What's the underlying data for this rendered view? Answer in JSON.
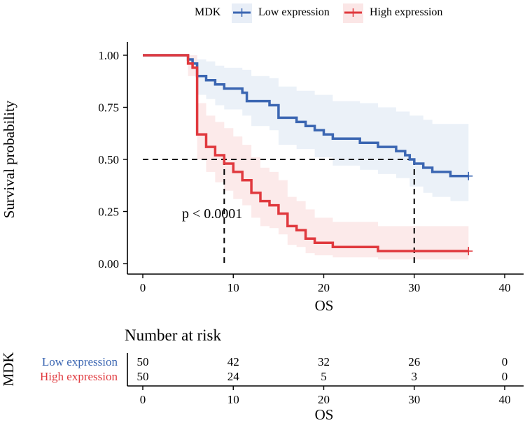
{
  "chart_data": [
    {
      "type": "line",
      "subtype": "kaplan-meier",
      "title": "",
      "xlabel": "OS",
      "ylabel": "Survival probability",
      "xlim": [
        0,
        40
      ],
      "ylim": [
        0,
        1
      ],
      "xticks": [
        "0",
        "10",
        "20",
        "30",
        "40"
      ],
      "yticks": [
        "0.00",
        "0.25",
        "0.50",
        "0.75",
        "1.00"
      ],
      "legend": {
        "title": "MDK",
        "position": "top",
        "entries": [
          "Low expression",
          "High expression"
        ]
      },
      "annotation": "p < 0.0001",
      "median_line": {
        "y": 0.5,
        "medians": [
          9,
          30
        ]
      },
      "series": [
        {
          "name": "Low expression",
          "color": "#3B66B2",
          "fill": "#E8EEF7",
          "steps": [
            [
              0,
              1.0
            ],
            [
              5,
              0.98
            ],
            [
              5.5,
              0.96
            ],
            [
              6,
              0.9
            ],
            [
              7,
              0.88
            ],
            [
              8,
              0.86
            ],
            [
              9,
              0.84
            ],
            [
              11,
              0.82
            ],
            [
              11.5,
              0.78
            ],
            [
              14,
              0.76
            ],
            [
              15,
              0.7
            ],
            [
              17,
              0.68
            ],
            [
              18,
              0.66
            ],
            [
              19,
              0.64
            ],
            [
              20,
              0.62
            ],
            [
              21,
              0.6
            ],
            [
              24,
              0.58
            ],
            [
              26,
              0.56
            ],
            [
              28,
              0.54
            ],
            [
              29,
              0.52
            ],
            [
              29.5,
              0.5
            ],
            [
              30,
              0.48
            ],
            [
              31,
              0.46
            ],
            [
              32,
              0.44
            ],
            [
              34,
              0.42
            ],
            [
              36,
              0.42
            ]
          ],
          "ci_upper": [
            [
              0,
              1.0
            ],
            [
              5,
              1.0
            ],
            [
              6,
              0.98
            ],
            [
              7,
              0.97
            ],
            [
              8,
              0.95
            ],
            [
              9,
              0.94
            ],
            [
              11,
              0.93
            ],
            [
              12,
              0.9
            ],
            [
              14,
              0.89
            ],
            [
              15,
              0.85
            ],
            [
              17,
              0.83
            ],
            [
              19,
              0.81
            ],
            [
              21,
              0.78
            ],
            [
              24,
              0.77
            ],
            [
              26,
              0.75
            ],
            [
              28,
              0.73
            ],
            [
              29.5,
              0.71
            ],
            [
              31,
              0.69
            ],
            [
              32,
              0.67
            ],
            [
              36,
              0.67
            ]
          ],
          "ci_lower": [
            [
              0,
              1.0
            ],
            [
              5,
              0.93
            ],
            [
              6,
              0.81
            ],
            [
              7,
              0.79
            ],
            [
              8,
              0.76
            ],
            [
              9,
              0.74
            ],
            [
              11,
              0.71
            ],
            [
              12,
              0.66
            ],
            [
              14,
              0.64
            ],
            [
              15,
              0.57
            ],
            [
              17,
              0.55
            ],
            [
              19,
              0.51
            ],
            [
              21,
              0.47
            ],
            [
              24,
              0.45
            ],
            [
              26,
              0.43
            ],
            [
              28,
              0.41
            ],
            [
              29.5,
              0.37
            ],
            [
              31,
              0.34
            ],
            [
              32,
              0.32
            ],
            [
              34,
              0.3
            ],
            [
              36,
              0.3
            ]
          ],
          "censor": [
            36,
            0.42
          ]
        },
        {
          "name": "High expression",
          "color": "#E0393E",
          "fill": "#FBE6E6",
          "steps": [
            [
              0,
              1.0
            ],
            [
              5,
              0.96
            ],
            [
              5.5,
              0.94
            ],
            [
              6,
              0.62
            ],
            [
              7,
              0.56
            ],
            [
              8,
              0.52
            ],
            [
              9,
              0.48
            ],
            [
              10,
              0.44
            ],
            [
              11,
              0.4
            ],
            [
              12,
              0.34
            ],
            [
              13,
              0.3
            ],
            [
              14,
              0.28
            ],
            [
              15,
              0.24
            ],
            [
              16,
              0.18
            ],
            [
              17,
              0.16
            ],
            [
              18,
              0.12
            ],
            [
              19,
              0.1
            ],
            [
              21,
              0.08
            ],
            [
              26,
              0.06
            ],
            [
              36,
              0.06
            ]
          ],
          "ci_upper": [
            [
              0,
              1.0
            ],
            [
              5,
              1.0
            ],
            [
              6,
              0.77
            ],
            [
              7,
              0.71
            ],
            [
              8,
              0.68
            ],
            [
              9,
              0.65
            ],
            [
              10,
              0.61
            ],
            [
              11,
              0.57
            ],
            [
              12,
              0.51
            ],
            [
              13,
              0.46
            ],
            [
              14,
              0.44
            ],
            [
              15,
              0.4
            ],
            [
              16,
              0.32
            ],
            [
              17,
              0.3
            ],
            [
              18,
              0.26
            ],
            [
              19,
              0.22
            ],
            [
              21,
              0.2
            ],
            [
              26,
              0.18
            ],
            [
              36,
              0.18
            ]
          ],
          "ci_lower": [
            [
              0,
              1.0
            ],
            [
              5,
              0.9
            ],
            [
              6,
              0.5
            ],
            [
              7,
              0.44
            ],
            [
              8,
              0.39
            ],
            [
              9,
              0.35
            ],
            [
              10,
              0.31
            ],
            [
              11,
              0.28
            ],
            [
              12,
              0.22
            ],
            [
              13,
              0.18
            ],
            [
              14,
              0.17
            ],
            [
              15,
              0.14
            ],
            [
              16,
              0.09
            ],
            [
              17,
              0.08
            ],
            [
              18,
              0.05
            ],
            [
              19,
              0.04
            ],
            [
              21,
              0.03
            ],
            [
              26,
              0.02
            ],
            [
              36,
              0.02
            ]
          ],
          "censor": [
            36,
            0.06
          ]
        }
      ]
    },
    {
      "type": "table",
      "title": "Number at risk",
      "ylabel": "MDK",
      "xlabel": "OS",
      "xticks": [
        "0",
        "10",
        "20",
        "30",
        "40"
      ],
      "x": [
        0,
        10,
        20,
        30,
        40
      ],
      "rows": [
        {
          "name": "Low expression",
          "color": "#3B66B2",
          "values": [
            50,
            42,
            32,
            26,
            0
          ]
        },
        {
          "name": "High expression",
          "color": "#E0393E",
          "values": [
            50,
            24,
            5,
            3,
            0
          ]
        }
      ]
    }
  ]
}
